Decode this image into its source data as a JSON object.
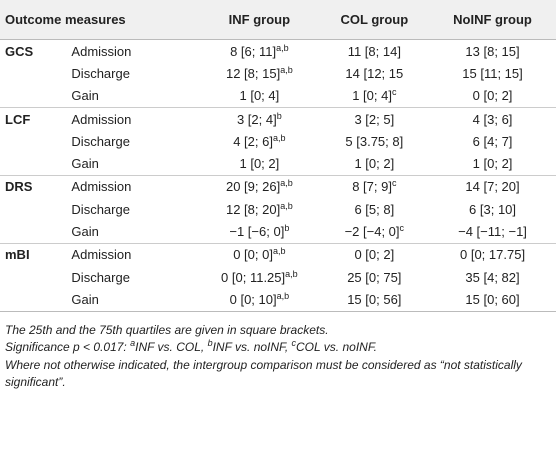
{
  "table": {
    "headers": [
      "Outcome measures",
      "INF group",
      "COL group",
      "NoINF group"
    ],
    "groups": [
      {
        "name": "GCS",
        "rows": [
          {
            "time": "Admission",
            "cells": [
              {
                "text": "8 [6; 11]",
                "sup": "a,b"
              },
              {
                "text": "11 [8; 14]"
              },
              {
                "text": "13 [8; 15]"
              }
            ]
          },
          {
            "time": "Discharge",
            "cells": [
              {
                "text": "12 [8; 15]",
                "sup": "a,b"
              },
              {
                "text": "14 [12; 15"
              },
              {
                "text": "15 [11; 15]"
              }
            ]
          },
          {
            "time": "Gain",
            "cells": [
              {
                "text": "1 [0; 4]"
              },
              {
                "text": "1 [0; 4]",
                "sup": "c"
              },
              {
                "text": "0 [0; 2]"
              }
            ]
          }
        ]
      },
      {
        "name": "LCF",
        "rows": [
          {
            "time": "Admission",
            "cells": [
              {
                "text": "3 [2; 4]",
                "sup": "b"
              },
              {
                "text": "3 [2; 5]"
              },
              {
                "text": "4 [3; 6]"
              }
            ]
          },
          {
            "time": "Discharge",
            "cells": [
              {
                "text": "4 [2; 6]",
                "sup": "a,b"
              },
              {
                "text": "5 [3.75; 8]"
              },
              {
                "text": "6 [4; 7]"
              }
            ]
          },
          {
            "time": "Gain",
            "cells": [
              {
                "text": "1 [0; 2]"
              },
              {
                "text": "1 [0; 2]"
              },
              {
                "text": "1 [0; 2]"
              }
            ]
          }
        ]
      },
      {
        "name": "DRS",
        "rows": [
          {
            "time": "Admission",
            "cells": [
              {
                "text": "20 [9; 26]",
                "sup": "a,b"
              },
              {
                "text": "8 [7; 9]",
                "sup": "c"
              },
              {
                "text": "14 [7; 20]"
              }
            ]
          },
          {
            "time": "Discharge",
            "cells": [
              {
                "text": "12 [8; 20]",
                "sup": "a,b"
              },
              {
                "text": "6 [5; 8]"
              },
              {
                "text": "6 [3; 10]"
              }
            ]
          },
          {
            "time": "Gain",
            "cells": [
              {
                "text": "−1 [−6; 0]",
                "sup": "b"
              },
              {
                "text": "−2 [−4; 0]",
                "sup": "c"
              },
              {
                "text": "−4 [−11; −1]"
              }
            ]
          }
        ]
      },
      {
        "name": "mBI",
        "rows": [
          {
            "time": "Admission",
            "cells": [
              {
                "text": "0 [0; 0]",
                "sup": "a,b"
              },
              {
                "text": "0 [0; 2]"
              },
              {
                "text": "0 [0; 17.75]"
              }
            ]
          },
          {
            "time": "Discharge",
            "cells": [
              {
                "text": "0 [0; 11.25]",
                "sup": "a,b"
              },
              {
                "text": "25 [0; 75]"
              },
              {
                "text": "35 [4; 82]"
              }
            ]
          },
          {
            "time": "Gain",
            "cells": [
              {
                "text": "0 [0; 10]",
                "sup": "a,b"
              },
              {
                "text": "15 [0; 56]"
              },
              {
                "text": "15 [0; 60]"
              }
            ]
          }
        ]
      }
    ]
  },
  "notes": {
    "quartiles": "The 25th and the 75th quartiles are given in square brackets.",
    "significance": {
      "text": "Significance p < 0.017: ",
      "items": [
        {
          "sup": "a",
          "text": "INF vs. COL, "
        },
        {
          "sup": "b",
          "text": "INF vs. noINF, "
        },
        {
          "sup": "c",
          "text": "COL vs. noINF."
        }
      ]
    },
    "comparison": "Where not otherwise indicated, the intergroup comparison must be considered as “not statistically significant”."
  }
}
